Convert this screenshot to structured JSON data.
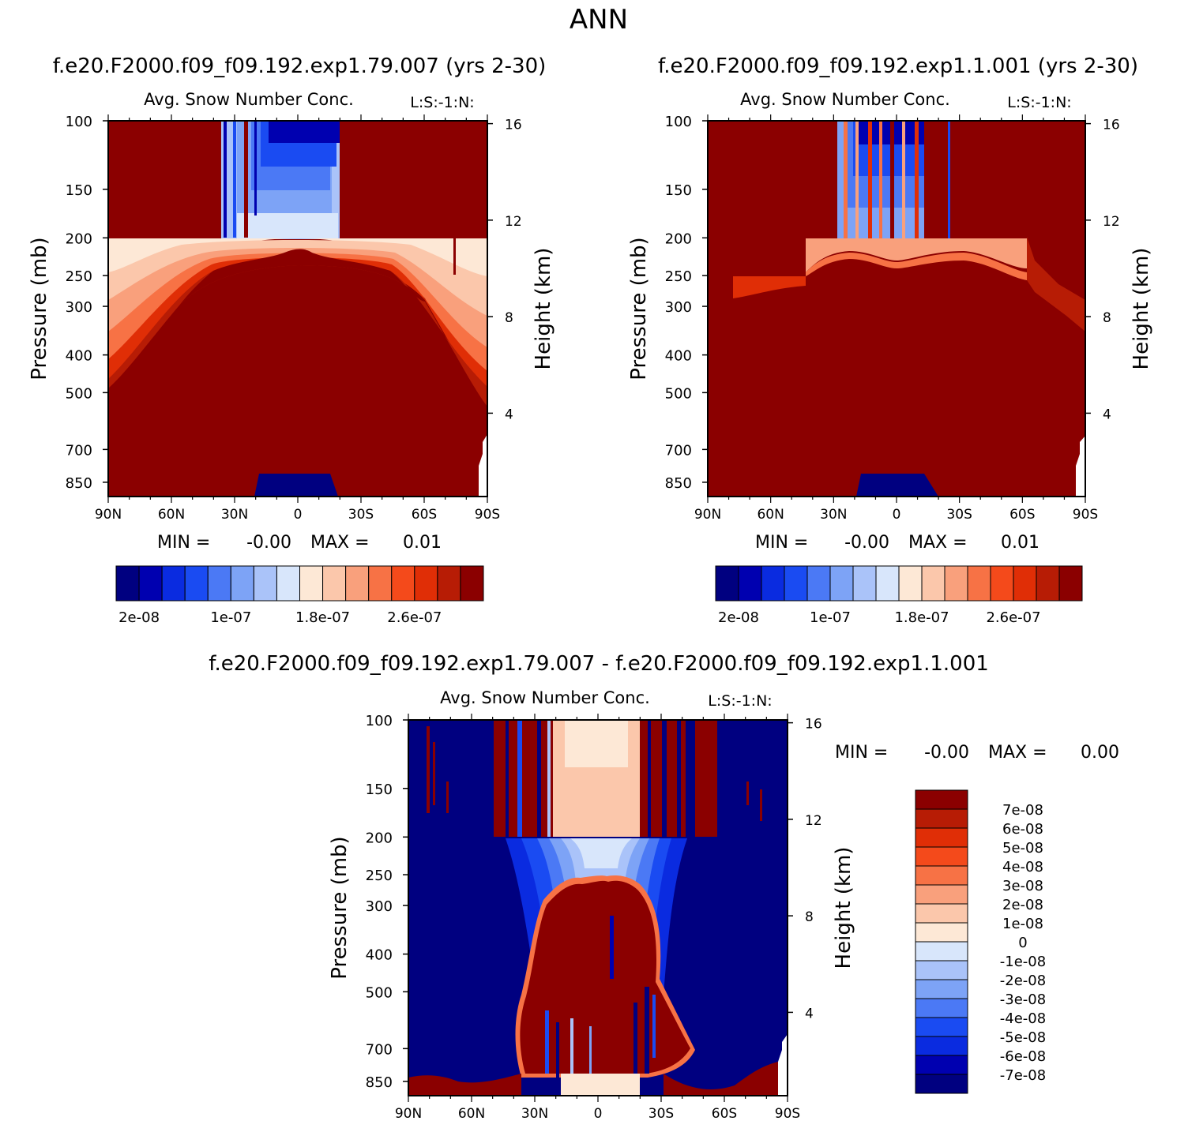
{
  "page_title": "ANN",
  "colors": {
    "diverging": [
      "#000080",
      "#0000b0",
      "#0a2be0",
      "#1a4bf2",
      "#4b79f5",
      "#7da3f6",
      "#aac3f9",
      "#d8e6fb",
      "#fde8d6",
      "#fbc7ab",
      "#f9a07c",
      "#f77245",
      "#f44a1b",
      "#e02e06",
      "#b71c05",
      "#8b0000"
    ]
  },
  "chart_data": [
    {
      "type": "heatmap",
      "id": "panel_top_left",
      "case_title": "f.e20.F2000.f09_f09.192.exp1.79.007 (yrs 2-30)",
      "title": "Avg. Snow Number Conc.",
      "corner_label": "L:S:-1:N:",
      "ylabel": "Pressure (mb)",
      "y2label": "Height (km)",
      "x_ticklabels": [
        "90N",
        "60N",
        "30N",
        "0",
        "30S",
        "60S",
        "90S"
      ],
      "xlim": [
        90,
        -90
      ],
      "y_ticks": [
        100,
        150,
        200,
        250,
        300,
        400,
        500,
        700,
        850
      ],
      "ylim": [
        100,
        925
      ],
      "y2_ticks": [
        16,
        12,
        8,
        4
      ],
      "min_label": "MIN =",
      "min_value": "-0.00",
      "max_label": "MAX =",
      "max_value": "0.01",
      "colorbar": {
        "orientation": "horizontal",
        "levels": 16,
        "ticklabels": [
          "2e-08",
          "1e-07",
          "1.8e-07",
          "2.6e-07"
        ]
      }
    },
    {
      "type": "heatmap",
      "id": "panel_top_right",
      "case_title": "f.e20.F2000.f09_f09.192.exp1.1.001 (yrs 2-30)",
      "title": "Avg. Snow Number Conc.",
      "corner_label": "L:S:-1:N:",
      "ylabel": "Pressure (mb)",
      "y2label": "Height (km)",
      "x_ticklabels": [
        "90N",
        "60N",
        "30N",
        "0",
        "30S",
        "60S",
        "90S"
      ],
      "xlim": [
        90,
        -90
      ],
      "y_ticks": [
        100,
        150,
        200,
        250,
        300,
        400,
        500,
        700,
        850
      ],
      "ylim": [
        100,
        925
      ],
      "y2_ticks": [
        16,
        12,
        8,
        4
      ],
      "min_label": "MIN =",
      "min_value": "-0.00",
      "max_label": "MAX =",
      "max_value": "0.01",
      "colorbar": {
        "orientation": "horizontal",
        "levels": 16,
        "ticklabels": [
          "2e-08",
          "1e-07",
          "1.8e-07",
          "2.6e-07"
        ]
      }
    },
    {
      "type": "heatmap",
      "id": "panel_bottom_diff",
      "case_title": "f.e20.F2000.f09_f09.192.exp1.79.007 - f.e20.F2000.f09_f09.192.exp1.1.001",
      "title": "Avg. Snow Number Conc.",
      "corner_label": "L:S:-1:N:",
      "ylabel": "Pressure (mb)",
      "y2label": "Height (km)",
      "x_ticklabels": [
        "90N",
        "60N",
        "30N",
        "0",
        "30S",
        "60S",
        "90S"
      ],
      "xlim": [
        90,
        -90
      ],
      "y_ticks": [
        100,
        150,
        200,
        250,
        300,
        400,
        500,
        700,
        850
      ],
      "ylim": [
        100,
        925
      ],
      "y2_ticks": [
        16,
        12,
        8,
        4
      ],
      "min_label": "MIN =",
      "min_value": "-0.00",
      "max_label": "MAX =",
      "max_value": "0.00",
      "colorbar": {
        "orientation": "vertical",
        "levels": 16,
        "ticklabels": [
          "7e-08",
          "6e-08",
          "5e-08",
          "4e-08",
          "3e-08",
          "2e-08",
          "1e-08",
          "0",
          "-1e-08",
          "-2e-08",
          "-3e-08",
          "-4e-08",
          "-5e-08",
          "-6e-08",
          "-7e-08"
        ]
      }
    }
  ]
}
